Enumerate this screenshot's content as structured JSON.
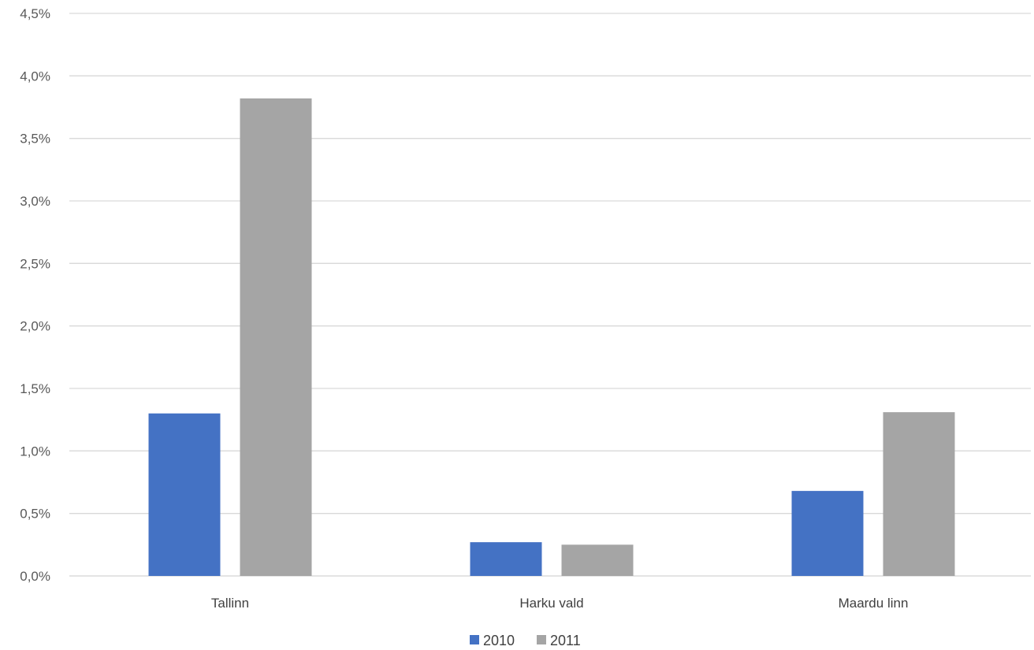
{
  "chart_data": {
    "type": "bar",
    "title": "",
    "xlabel": "",
    "ylabel": "",
    "categories": [
      "Tallinn",
      "Harku vald",
      "Maardu linn"
    ],
    "series": [
      {
        "name": "2010",
        "color": "#4472C4",
        "values": [
          1.3,
          0.27,
          0.68
        ]
      },
      {
        "name": "2011",
        "color": "#A5A5A5",
        "values": [
          3.82,
          0.25,
          1.31
        ]
      }
    ],
    "ylim": [
      0,
      4.5
    ],
    "yticks": [
      "0,0%",
      "0,5%",
      "1,0%",
      "1,5%",
      "2,0%",
      "2,5%",
      "3,0%",
      "3,5%",
      "4,0%",
      "4,5%"
    ],
    "grid": true,
    "legend_position": "bottom"
  }
}
